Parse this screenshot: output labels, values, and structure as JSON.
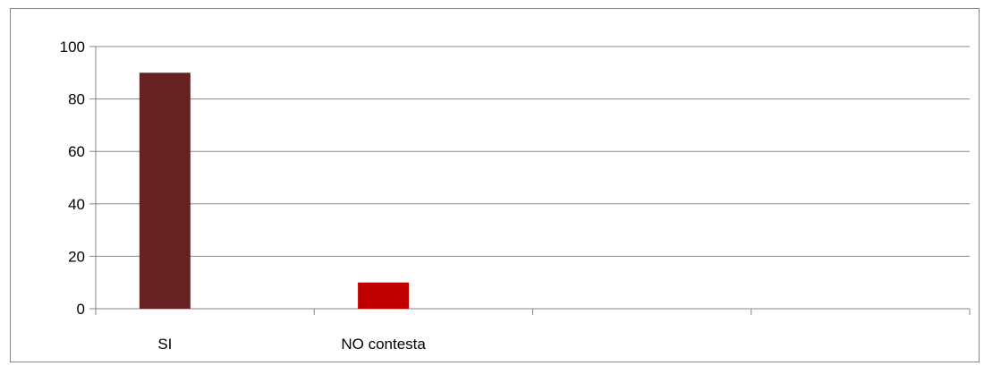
{
  "chart_data": {
    "type": "bar",
    "categories": [
      "SI",
      "NO contesta",
      "",
      ""
    ],
    "series": [
      {
        "values": [
          90,
          10,
          null,
          null
        ]
      }
    ],
    "bar_colors": [
      "#662222",
      "#c00000"
    ],
    "title": "",
    "xlabel": "",
    "ylabel": "",
    "ylim": [
      0,
      100
    ],
    "yticks": [
      0,
      20,
      40,
      60,
      80,
      100
    ],
    "grid": true,
    "legend": "none"
  },
  "colors": {
    "gridline": "#868686",
    "axis": "#868686",
    "frame": "#868686"
  }
}
